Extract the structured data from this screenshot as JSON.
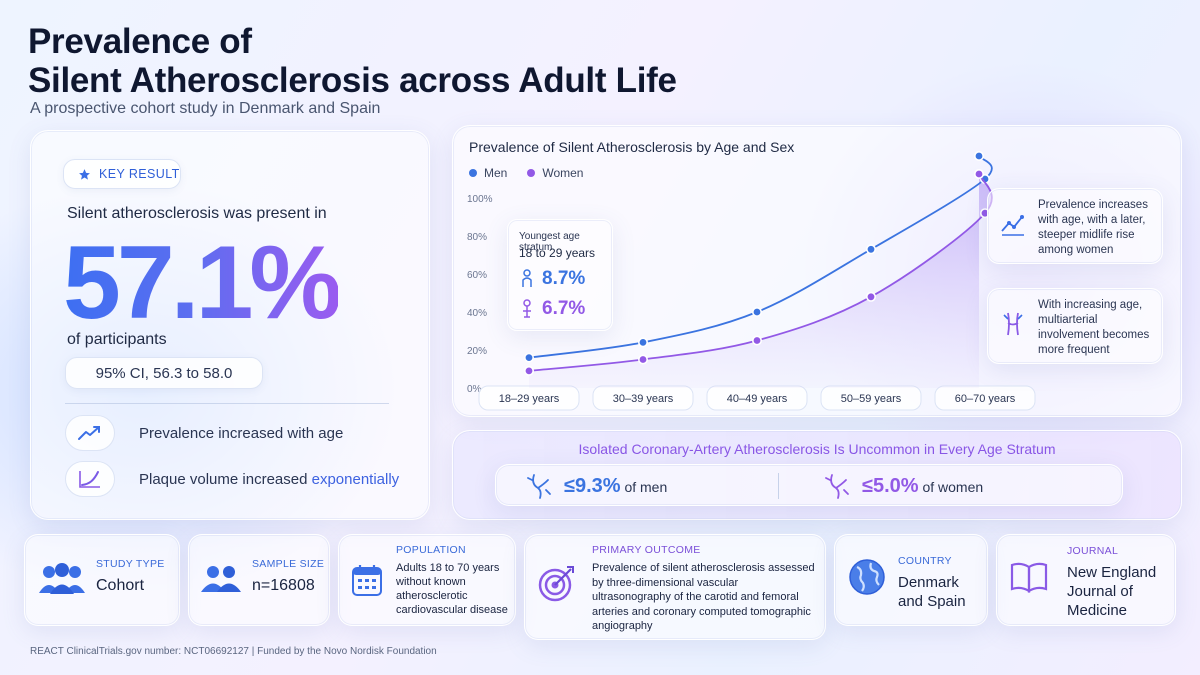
{
  "header": {
    "title_line1": "Prevalence of",
    "title_line2": "Silent Atherosclerosis across Adult Life",
    "subtitle": "A prospective cohort study in Denmark and Spain"
  },
  "key_result": {
    "badge": "KEY RESULT",
    "lead": "Silent atherosclerosis was present in",
    "value": "57.1%",
    "of_participants": "of participants",
    "ci": "95% CI, 56.3 to 58.0",
    "finding1": "Prevalence increased with age",
    "finding2_prefix": "Plaque volume increased ",
    "finding2_accent": "exponentially",
    "icons": [
      "trend-up-icon",
      "exponential-curve-icon"
    ]
  },
  "chart": {
    "title": "Prevalence of Silent Atherosclerosis by Age and Sex",
    "inset": {
      "title": "Youngest age stratum",
      "subtitle": "18 to 29 years",
      "men_value": "8.7%",
      "women_value": "6.7%"
    },
    "note1": "Prevalence increases with age, with a later, steeper midlife rise among women",
    "note2": "With increasing age, multiarterial involvement becomes more frequent",
    "colors": {
      "men": "#3b74e0",
      "women": "#9259e6"
    }
  },
  "chart_data": {
    "type": "line",
    "title": "Prevalence of Silent Atherosclerosis by Age and Sex",
    "categories": [
      "18–29 years",
      "30–39 years",
      "40–49 years",
      "50–59 years",
      "60–70 years"
    ],
    "y_ticks": [
      "0%",
      "20%",
      "40%",
      "60%",
      "80%",
      "100%"
    ],
    "ylim": [
      0,
      100
    ],
    "legend_position": "top-left",
    "grid": false,
    "series": [
      {
        "name": "Men",
        "values": [
          16,
          24,
          40,
          73,
          110
        ],
        "extra_point": [
          125,
          120
        ]
      },
      {
        "name": "Women",
        "values": [
          9,
          15,
          25,
          48,
          92
        ],
        "extra_point": [
          125,
          111
        ]
      }
    ]
  },
  "isolated": {
    "title": "Isolated Coronary-Artery Atherosclerosis Is Uncommon in Every Age Stratum",
    "men_value": "≤9.3%",
    "men_label": "of men",
    "women_value": "≤5.0%",
    "women_label": "of women"
  },
  "bottom": {
    "study_type_label": "STUDY TYPE",
    "study_type": "Cohort",
    "sample_size_label": "SAMPLE SIZE",
    "sample_size": "n=16808",
    "population_label": "POPULATION",
    "population": "Adults 18 to 70 years without known atherosclerotic cardiovascular disease",
    "outcome_label": "PRIMARY OUTCOME",
    "outcome": "Prevalence of silent atherosclerosis assessed by three-dimensional vascular ultrasonography of the carotid and femoral arteries and coronary computed tomographic angiography",
    "country_label": "COUNTRY",
    "country": "Denmark and Spain",
    "journal_label": "JOURNAL",
    "journal": "New England Journal of Medicine"
  },
  "footer": "REACT ClinicalTrials.gov number: NCT06692127  |  Funded by the Novo Nordisk Foundation"
}
